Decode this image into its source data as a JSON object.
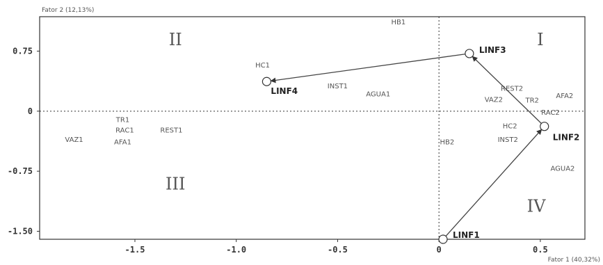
{
  "chart_data": {
    "type": "scatter",
    "xlabel": "Fator 1 (40,32%)",
    "ylabel": "Fator 2 (12,13%)",
    "xlim": [
      -1.97,
      0.72
    ],
    "ylim": [
      -1.6,
      1.18
    ],
    "grid": false,
    "x_ticks": [
      {
        "value": -1.5,
        "label": "-1.5"
      },
      {
        "value": -1.0,
        "label": "-1.0"
      },
      {
        "value": -0.5,
        "label": "-0.5"
      },
      {
        "value": 0,
        "label": "0"
      },
      {
        "value": 0.5,
        "label": "0.5"
      }
    ],
    "y_ticks": [
      {
        "value": 0.75,
        "label": "0.75"
      },
      {
        "value": 0,
        "label": "0"
      },
      {
        "value": -0.75,
        "label": "-0.75"
      },
      {
        "value": -1.5,
        "label": "-1.50"
      }
    ],
    "quadrants": [
      {
        "label": "I",
        "x": 0.5,
        "y": 0.9
      },
      {
        "label": "II",
        "x": -1.3,
        "y": 0.9
      },
      {
        "label": "III",
        "x": -1.3,
        "y": -0.9
      },
      {
        "label": "IV",
        "x": 0.48,
        "y": -1.18
      }
    ],
    "points": [
      {
        "label": "HB1",
        "x": -0.2,
        "y": 1.12
      },
      {
        "label": "HC1",
        "x": -0.87,
        "y": 0.58
      },
      {
        "label": "INST1",
        "x": -0.5,
        "y": 0.32
      },
      {
        "label": "AGUA1",
        "x": -0.3,
        "y": 0.22
      },
      {
        "label": "TR1",
        "x": -1.56,
        "y": -0.1
      },
      {
        "label": "RAC1",
        "x": -1.55,
        "y": -0.23
      },
      {
        "label": "REST1",
        "x": -1.32,
        "y": -0.23
      },
      {
        "label": "AFA1",
        "x": -1.56,
        "y": -0.38
      },
      {
        "label": "VAZ1",
        "x": -1.8,
        "y": -0.35
      },
      {
        "label": "REST2",
        "x": 0.36,
        "y": 0.29
      },
      {
        "label": "AFA2",
        "x": 0.62,
        "y": 0.2
      },
      {
        "label": "TR2",
        "x": 0.46,
        "y": 0.14
      },
      {
        "label": "VAZ2",
        "x": 0.27,
        "y": 0.15
      },
      {
        "label": "RAC2",
        "x": 0.55,
        "y": -0.01
      },
      {
        "label": "HC2",
        "x": 0.35,
        "y": -0.18
      },
      {
        "label": "INST2",
        "x": 0.34,
        "y": -0.35
      },
      {
        "label": "HB2",
        "x": 0.04,
        "y": -0.38
      },
      {
        "label": "AGUA2",
        "x": 0.61,
        "y": -0.71
      }
    ],
    "trajectory": [
      {
        "label": "LINF1",
        "x": 0.02,
        "y": -1.6
      },
      {
        "label": "LINF2",
        "x": 0.52,
        "y": -0.19
      },
      {
        "label": "LINF3",
        "x": 0.15,
        "y": 0.72
      },
      {
        "label": "LINF4",
        "x": -0.85,
        "y": 0.37
      }
    ]
  }
}
